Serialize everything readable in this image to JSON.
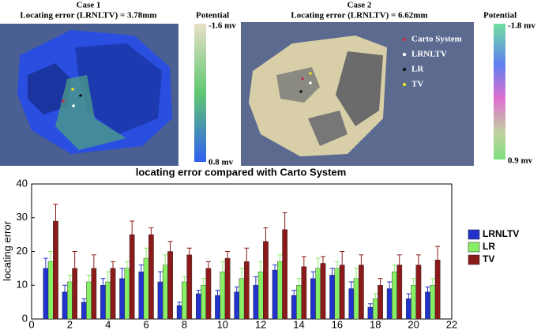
{
  "panels": [
    {
      "title": "Case 1",
      "subtitle": "Locating error (LRNLTV) = 3.78mm",
      "colorbar": {
        "title": "Potential",
        "top_label": "-1.6 mv",
        "bottom_label": "0.8 mv"
      }
    },
    {
      "title": "Case 2",
      "subtitle": "Locating error (LRNLTV) = 6.62mm",
      "colorbar": {
        "title": "Potential",
        "top_label": "-1.8 mv",
        "bottom_label": "0.9 mv"
      },
      "legend": [
        {
          "label": "Carto System",
          "color": "#c0304a"
        },
        {
          "label": "LRNLTV",
          "color": "#ffffff"
        },
        {
          "label": "LR",
          "color": "#111111"
        },
        {
          "label": "TV",
          "color": "#e8e020"
        }
      ]
    }
  ],
  "chart_data": {
    "type": "bar",
    "title": "locating error compared with Carto System",
    "ylabel": "locating error",
    "x": [
      1,
      2,
      3,
      4,
      5,
      6,
      7,
      8,
      9,
      10,
      11,
      12,
      13,
      14,
      15,
      16,
      17,
      18,
      19,
      20,
      21
    ],
    "xlim": [
      0,
      22
    ],
    "xticks": [
      0,
      2,
      4,
      6,
      8,
      10,
      12,
      14,
      16,
      18,
      20,
      22
    ],
    "ylim": [
      0,
      40
    ],
    "yticks": [
      0,
      10,
      20,
      30,
      40
    ],
    "legend": "right",
    "series": [
      {
        "name": "LRNLTV",
        "color": "#2233cc",
        "values": [
          15,
          8,
          5,
          10,
          12,
          14,
          11,
          4,
          7.5,
          7,
          8,
          10,
          14.5,
          7,
          12,
          13,
          9,
          3.5,
          9,
          6,
          8
        ],
        "errors": [
          3,
          2,
          1,
          2,
          3,
          2,
          3,
          1,
          1,
          1.5,
          1.5,
          2.5,
          1.5,
          1.5,
          2,
          2,
          2,
          1,
          2,
          1.5,
          1.5
        ]
      },
      {
        "name": "LR",
        "color": "#88ee66",
        "values": [
          17,
          11,
          11,
          11,
          15,
          18,
          16,
          11,
          10,
          14,
          12,
          14,
          17,
          10,
          15,
          15,
          12,
          6,
          14,
          10,
          10
        ],
        "errors": [
          3,
          2,
          2,
          3,
          2,
          3,
          3,
          1.5,
          2,
          3,
          3,
          3,
          2,
          2,
          3,
          2,
          3,
          1.5,
          2,
          2,
          2
        ]
      },
      {
        "name": "TV",
        "color": "#8b1a1a",
        "values": [
          29,
          15,
          15,
          15,
          25,
          25,
          20,
          19,
          15,
          18,
          17,
          23,
          26.5,
          15.5,
          16.5,
          16,
          16,
          10,
          16,
          16,
          17.5
        ],
        "errors": [
          5,
          5,
          4,
          2,
          4,
          2,
          3,
          2,
          2,
          2,
          4,
          4,
          5,
          3,
          2,
          4,
          3,
          2,
          3,
          3,
          4
        ]
      }
    ]
  }
}
